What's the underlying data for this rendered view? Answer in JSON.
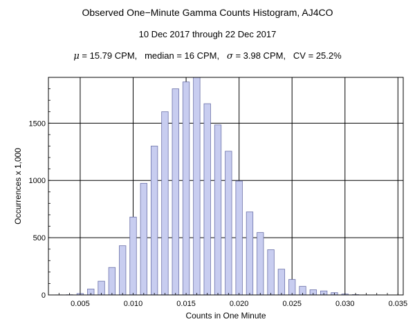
{
  "chart_data": {
    "type": "bar",
    "title": "Observed One−Minute Gamma Counts Histogram, AJ4CO",
    "subtitle": "10 Dec 2017 through 22 Dec 2017",
    "stats": {
      "mu_symbol": "μ",
      "mu_text": " = 15.79 CPM,   median = 16 CPM,   ",
      "sigma_symbol": "σ",
      "sigma_text": " = 3.98 CPM,   CV = 25.2%"
    },
    "xlabel": "Counts in One Minute",
    "ylabel": "Occurrences x 1,000",
    "xlim": [
      0.002,
      0.0355
    ],
    "ylim": [
      0,
      1900
    ],
    "xticks": [
      0.005,
      0.01,
      0.015,
      0.02,
      0.025,
      0.03,
      0.035
    ],
    "xtick_labels": [
      "0.005",
      "0.010",
      "0.015",
      "0.020",
      "0.025",
      "0.030",
      "0.035"
    ],
    "yticks": [
      0,
      500,
      1000,
      1500
    ],
    "ytick_labels": [
      "0",
      "500",
      "1000",
      "1500"
    ],
    "grid": true,
    "bar_color": "#c8cdf0",
    "bar_edge_color": "#6a70a8",
    "x": [
      0.002,
      0.003,
      0.004,
      0.005,
      0.006,
      0.007,
      0.008,
      0.009,
      0.01,
      0.011,
      0.012,
      0.013,
      0.014,
      0.015,
      0.016,
      0.017,
      0.018,
      0.019,
      0.02,
      0.021,
      0.022,
      0.023,
      0.024,
      0.025,
      0.026,
      0.027,
      0.028,
      0.029,
      0.03,
      0.031,
      0.032,
      0.033,
      0.034,
      0.035
    ],
    "values": [
      0,
      1,
      2,
      12,
      52,
      120,
      240,
      430,
      680,
      975,
      1300,
      1600,
      1800,
      1860,
      1900,
      1670,
      1485,
      1255,
      995,
      725,
      545,
      395,
      225,
      135,
      75,
      45,
      35,
      20,
      8,
      3,
      1,
      1,
      0,
      0
    ]
  }
}
